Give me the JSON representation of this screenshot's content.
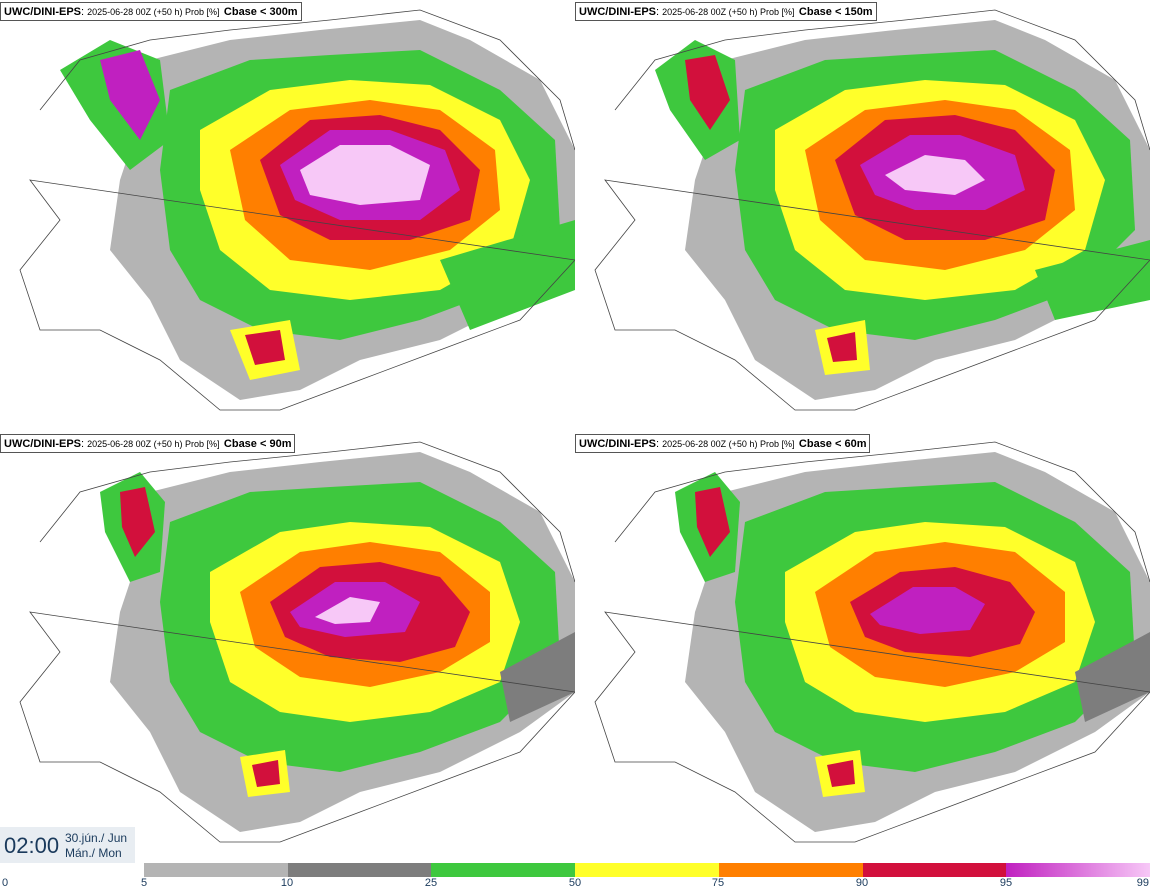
{
  "panels": [
    {
      "model": "UWC/DINI-EPS",
      "run": "2025-06-28 00Z (+50 h) Prob [%]",
      "variable": "Cbase < 300m"
    },
    {
      "model": "UWC/DINI-EPS",
      "run": "2025-06-28 00Z (+50 h) Prob [%]",
      "variable": "Cbase < 150m"
    },
    {
      "model": "UWC/DINI-EPS",
      "run": "2025-06-28 00Z (+50 h) Prob [%]",
      "variable": "Cbase < 90m"
    },
    {
      "model": "UWC/DINI-EPS",
      "run": "2025-06-28 00Z (+50 h) Prob [%]",
      "variable": "Cbase < 60m"
    }
  ],
  "valid_time": {
    "clock": "02:00",
    "date_line1": "30.jún./ Jun",
    "date_line2": "Mán./ Mon"
  },
  "colorbar": {
    "ticks": [
      "0",
      "5",
      "10",
      "25",
      "50",
      "75",
      "90",
      "95",
      "99"
    ],
    "colors": [
      "#ffffff",
      "#b4b4b4",
      "#7d7d7d",
      "#3ec83e",
      "#ffff2a",
      "#ff7f00",
      "#d2103c",
      "#c020c0",
      "#f7c8f7"
    ]
  }
}
